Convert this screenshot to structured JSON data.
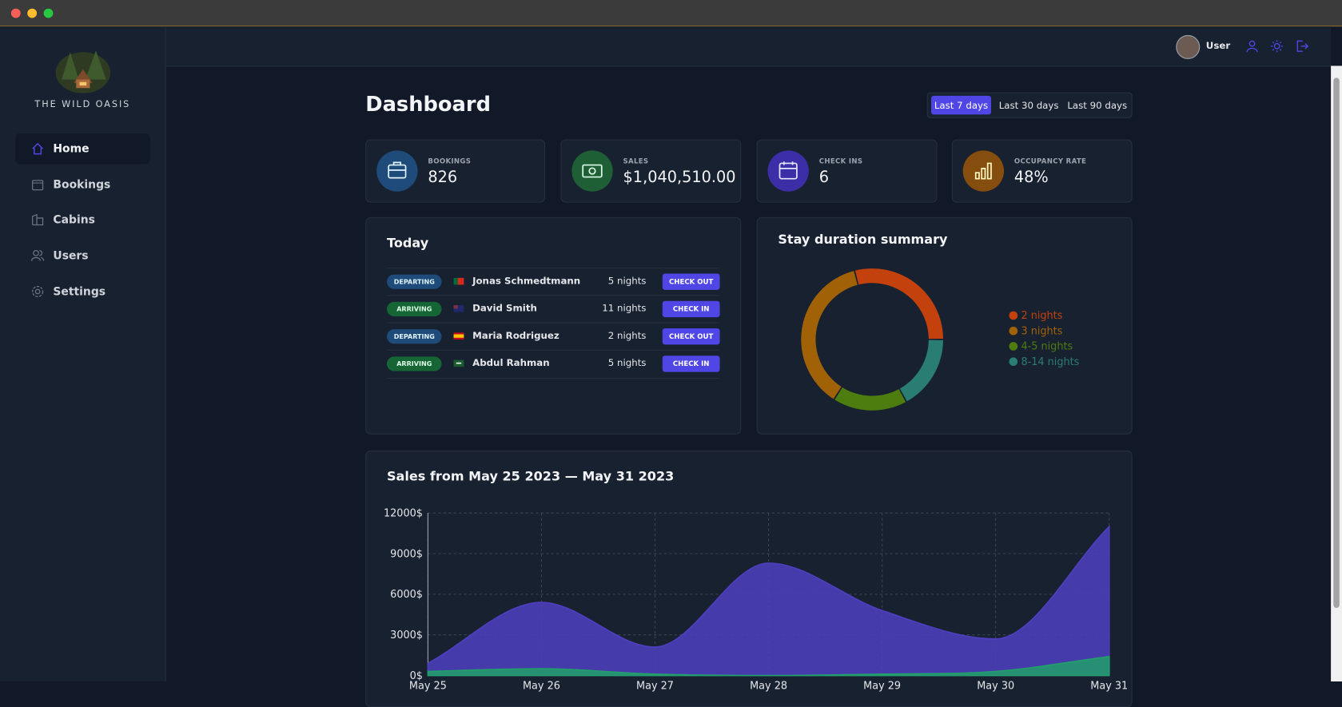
{
  "sidebar": {
    "brand": "THE WILD OASIS",
    "nav": [
      "Home",
      "Bookings",
      "Cabins",
      "Users",
      "Settings"
    ]
  },
  "header": {
    "user": "User"
  },
  "title": "Dashboard",
  "filters": [
    "Last 7 days",
    "Last 30 days",
    "Last 90 days"
  ],
  "stats": [
    {
      "label": "BOOKINGS",
      "value": "826"
    },
    {
      "label": "SALES",
      "value": "$1,040,510.00"
    },
    {
      "label": "CHECK INS",
      "value": "6"
    },
    {
      "label": "OCCUPANCY RATE",
      "value": "48%"
    }
  ],
  "today": {
    "title": "Today",
    "rows": [
      {
        "status": "DEPARTING",
        "guest": "Jonas Schmedtmann",
        "nights": "5 nights",
        "action": "CHECK OUT"
      },
      {
        "status": "ARRIVING",
        "guest": "David Smith",
        "nights": "11 nights",
        "action": "CHECK IN"
      },
      {
        "status": "DEPARTING",
        "guest": "Maria Rodriguez",
        "nights": "2 nights",
        "action": "CHECK OUT"
      },
      {
        "status": "ARRIVING",
        "guest": "Abdul Rahman",
        "nights": "5 nights",
        "action": "CHECK IN"
      }
    ]
  },
  "duration_chart": {
    "type": "pie",
    "title": "Stay duration summary",
    "categories": [
      "2 nights",
      "3 nights",
      "4-5 nights",
      "8-14 nights"
    ],
    "values": [
      29,
      37,
      17,
      17
    ],
    "colors": [
      "#c2410c",
      "#a16207",
      "#4d7c0f",
      "#2a7d72"
    ]
  },
  "sales_chart": {
    "type": "area",
    "title": "Sales from May 25 2023 — May 31 2023",
    "categories": [
      "May 25",
      "May 26",
      "May 27",
      "May 28",
      "May 29",
      "May 30",
      "May 31"
    ],
    "series": [
      {
        "color": "#4f3fc0",
        "values": [
          900,
          5400,
          2100,
          8300,
          4800,
          2700,
          11000
        ]
      },
      {
        "color": "#22a06b",
        "values": [
          300,
          500,
          100,
          0,
          100,
          300,
          1400
        ]
      }
    ],
    "ylim": [
      0,
      12000
    ],
    "yticks": [
      {
        "value": 0,
        "label": "0$"
      },
      {
        "value": 3000,
        "label": "3000$"
      },
      {
        "value": 6000,
        "label": "6000$"
      },
      {
        "value": 9000,
        "label": "9000$"
      },
      {
        "value": 12000,
        "label": "12000$"
      }
    ],
    "grid": true
  }
}
